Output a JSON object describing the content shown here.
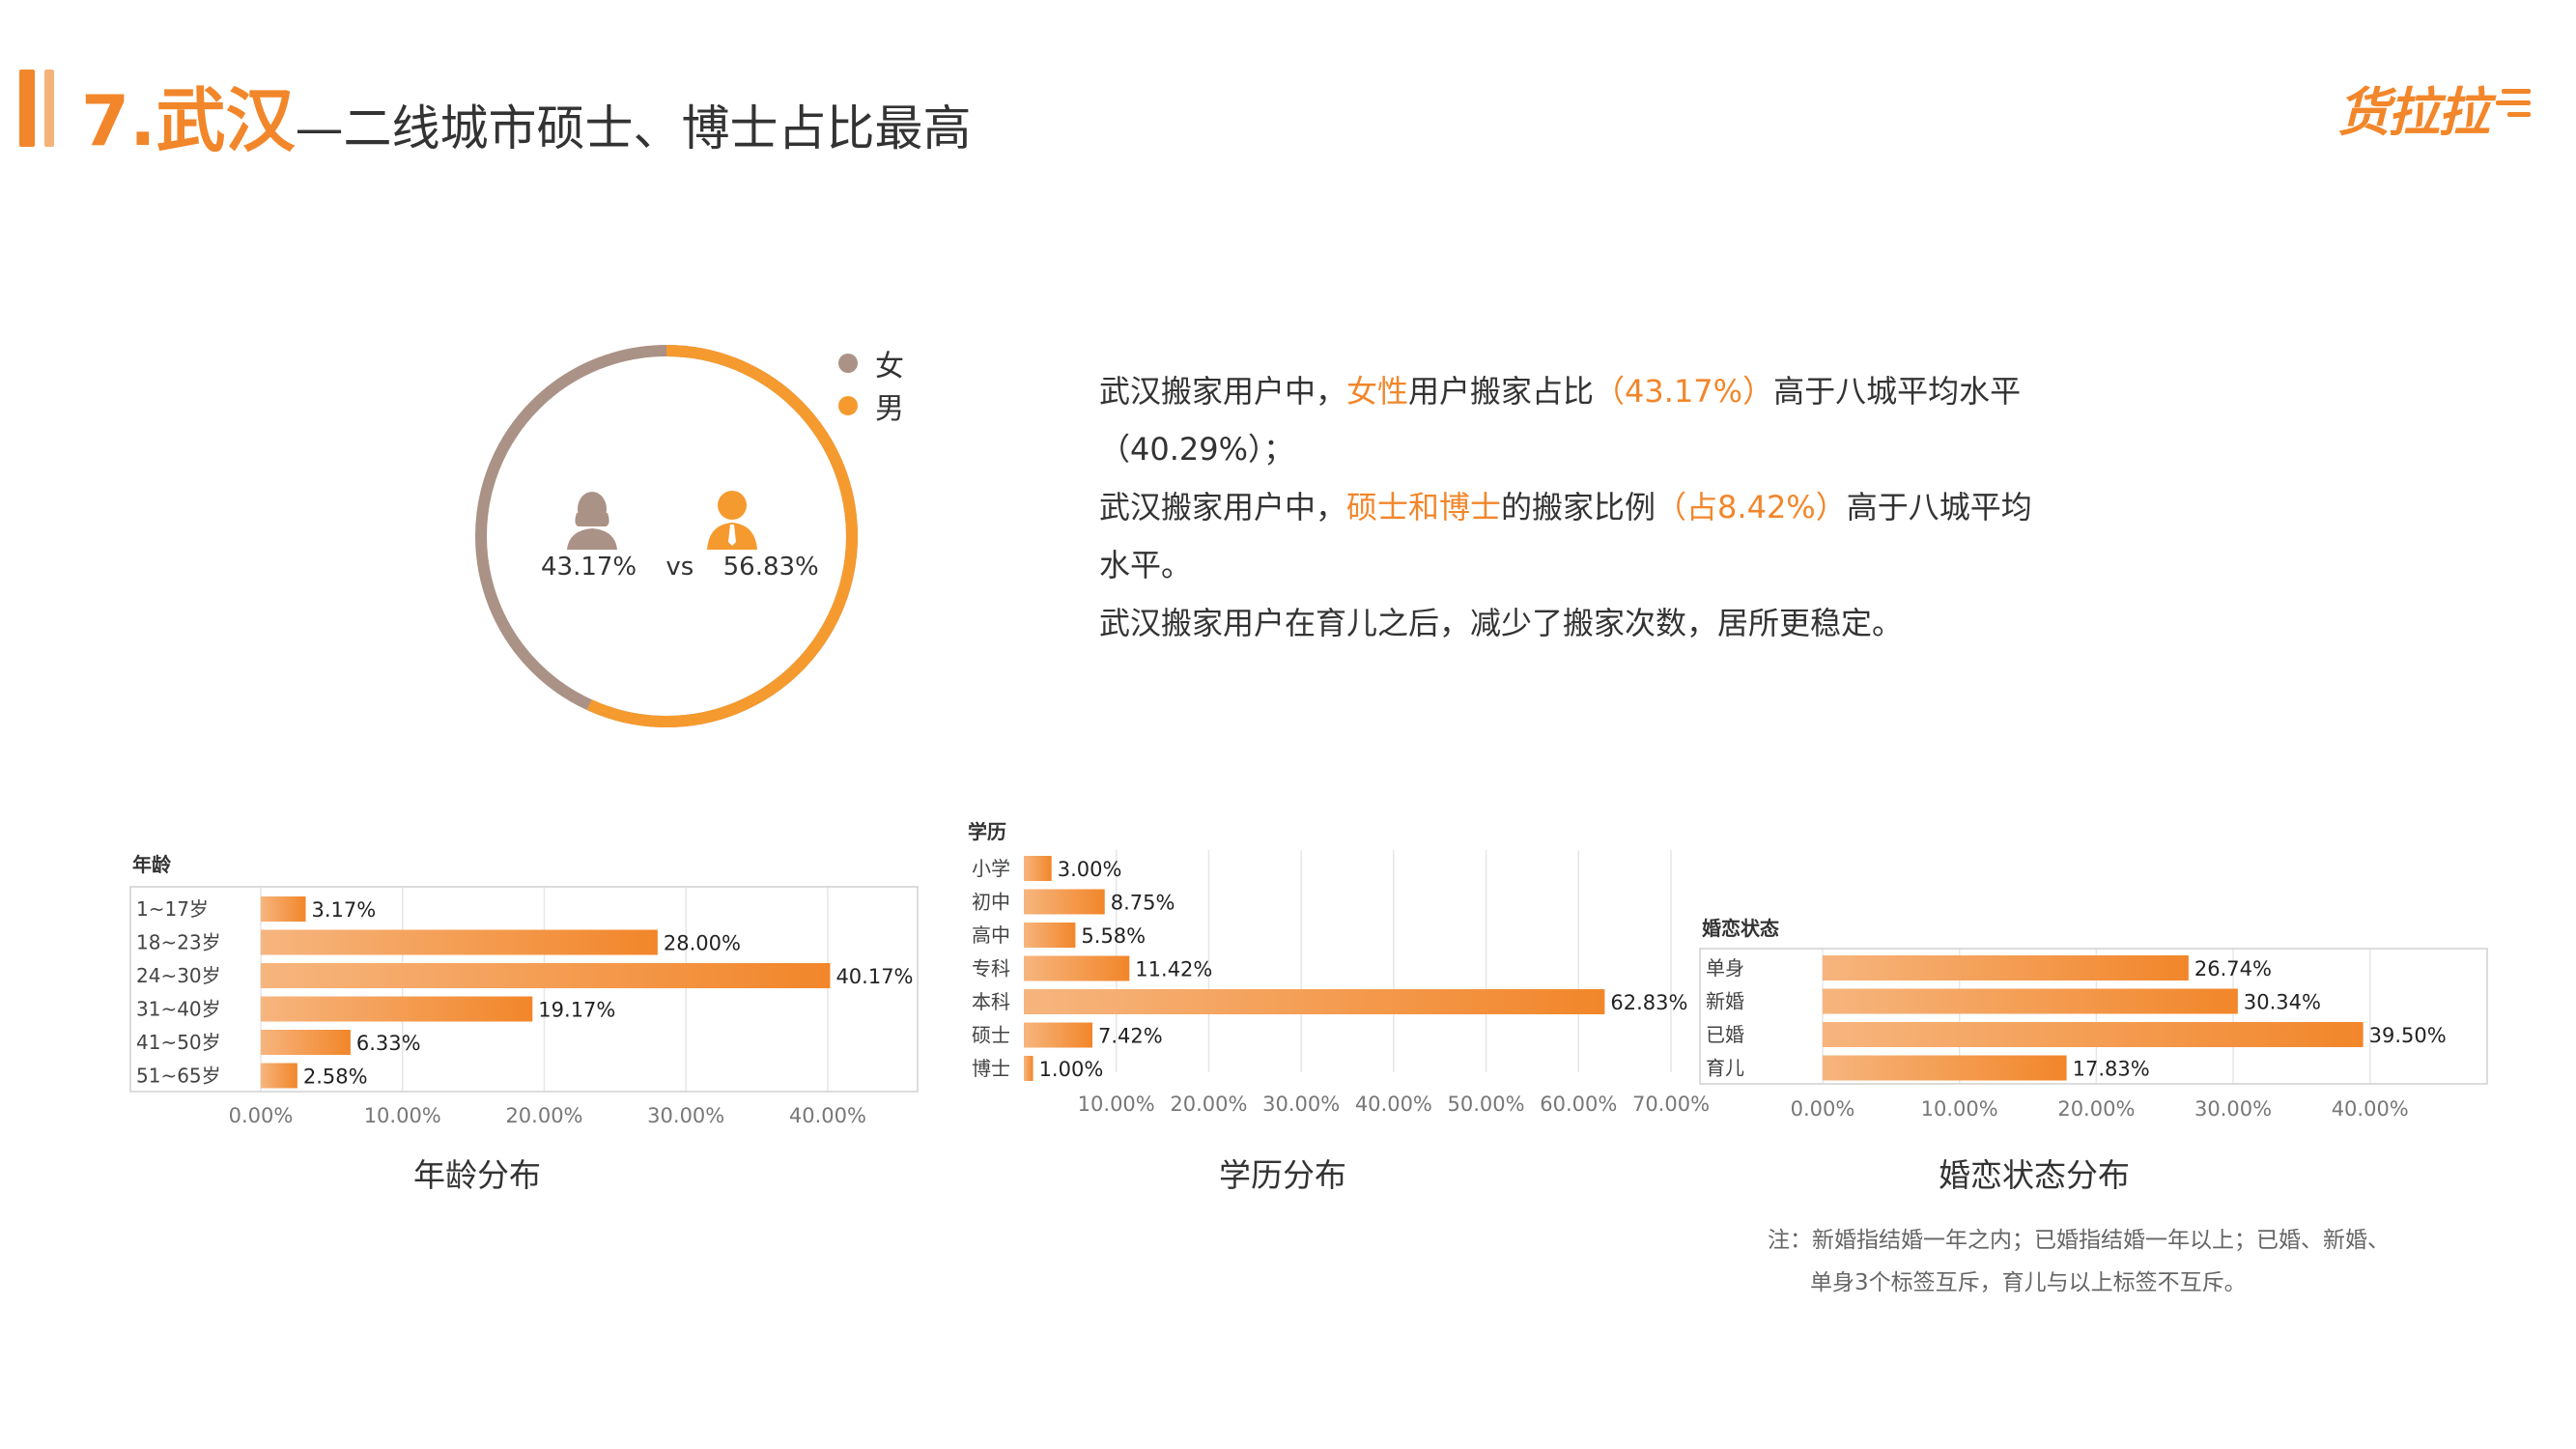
{
  "header": {
    "title_main": "7.武汉",
    "title_sub": "—二线城市硕士、博士占比最高",
    "logo_text": "货拉拉"
  },
  "colors": {
    "accent": "#f2862a",
    "accent_light": "#f6b57e",
    "female": "#ab9286",
    "male": "#f59a2f",
    "grid": "#e6e6e6",
    "frame": "#d0d0d0"
  },
  "gender": {
    "female_label": "女",
    "male_label": "男",
    "female_pct": "43.17%",
    "vs": "vs",
    "male_pct": "56.83%",
    "female_value": 43.17,
    "male_value": 56.83
  },
  "summary": {
    "line1_a": "武汉搬家用户中，",
    "line1_hl1": "女性",
    "line1_b": "用户搬家占比",
    "line1_hl2": "（43.17%）",
    "line1_c": "高于八城平均水平",
    "line2": "（40.29%）；",
    "line3_a": "武汉搬家用户中，",
    "line3_hl1": "硕士和博士",
    "line3_b": "的搬家比例",
    "line3_hl2": "（占8.42%）",
    "line3_c": "高于八城平均",
    "line4": "水平。",
    "line5": "武汉搬家用户在育儿之后，减少了搬家次数，居所更稳定。"
  },
  "chart_data": [
    {
      "type": "bar",
      "orientation": "horizontal",
      "title": "年龄分布",
      "axis_title": "年龄",
      "categories": [
        "1~17岁",
        "18~23岁",
        "24~30岁",
        "31~40岁",
        "41~50岁",
        "51~65岁"
      ],
      "values": [
        3.17,
        28.0,
        40.17,
        19.17,
        6.33,
        2.58
      ],
      "value_labels": [
        "3.17%",
        "28.00%",
        "40.17%",
        "19.17%",
        "6.33%",
        "2.58%"
      ],
      "ticks": [
        0,
        10,
        20,
        30,
        40
      ],
      "tick_labels": [
        "0.00%",
        "10.00%",
        "20.00%",
        "30.00%",
        "40.00%"
      ],
      "xlim": [
        0,
        46
      ],
      "grid": true,
      "frame": true
    },
    {
      "type": "bar",
      "orientation": "horizontal",
      "title": "学历分布",
      "axis_title": "学历",
      "categories": [
        "小学",
        "初中",
        "高中",
        "专科",
        "本科",
        "硕士",
        "博士"
      ],
      "values": [
        3.0,
        8.75,
        5.58,
        11.42,
        62.83,
        7.42,
        1.0
      ],
      "value_labels": [
        "3.00%",
        "8.75%",
        "5.58%",
        "11.42%",
        "62.83%",
        "7.42%",
        "1.00%"
      ],
      "ticks": [
        10,
        20,
        30,
        40,
        50,
        60,
        70
      ],
      "tick_labels": [
        "10.00%",
        "20.00%",
        "30.00%",
        "40.00%",
        "50.00%",
        "60.00%",
        "70.00%"
      ],
      "xlim": [
        0,
        70
      ],
      "grid": true,
      "frame": false
    },
    {
      "type": "bar",
      "orientation": "horizontal",
      "title": "婚恋状态分布",
      "axis_title": "婚恋状态",
      "categories": [
        "单身",
        "新婚",
        "已婚",
        "育儿"
      ],
      "values": [
        26.74,
        30.34,
        39.5,
        17.83
      ],
      "value_labels": [
        "26.74%",
        "30.34%",
        "39.50%",
        "17.83%"
      ],
      "ticks": [
        0,
        10,
        20,
        30,
        40
      ],
      "tick_labels": [
        "0.00%",
        "10.00%",
        "20.00%",
        "30.00%",
        "40.00%"
      ],
      "xlim": [
        0,
        47.5
      ],
      "grid": true,
      "frame": true
    }
  ],
  "note": {
    "line1": "注：新婚指结婚一年之内；已婚指结婚一年以上；已婚、新婚、",
    "line2": "单身3个标签互斥，育儿与以上标签不互斥。"
  }
}
